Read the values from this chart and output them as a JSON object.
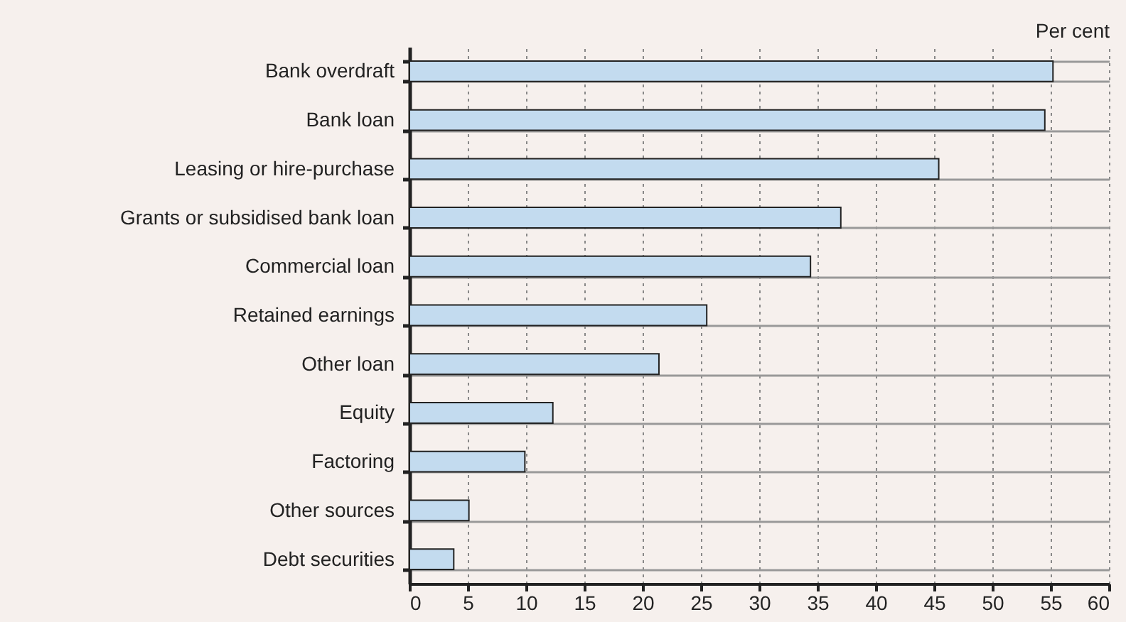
{
  "chart_data": {
    "type": "bar",
    "orientation": "horizontal",
    "xlabel": "Per cent",
    "categories": [
      "Bank overdraft",
      "Bank loan",
      "Leasing or hire-purchase",
      "Grants or subsidised bank loan",
      "Commercial loan",
      "Retained earnings",
      "Other loan",
      "Equity",
      "Factoring",
      "Other sources",
      "Debt securities"
    ],
    "values": [
      55.2,
      54.5,
      45.4,
      37.0,
      34.4,
      25.5,
      21.4,
      12.3,
      9.9,
      5.1,
      3.8
    ],
    "color": "#c3dbef",
    "xlim": [
      0,
      60
    ],
    "xticks": [
      0,
      5,
      10,
      15,
      20,
      25,
      30,
      35,
      40,
      45,
      50,
      55,
      60
    ],
    "grid": true
  }
}
